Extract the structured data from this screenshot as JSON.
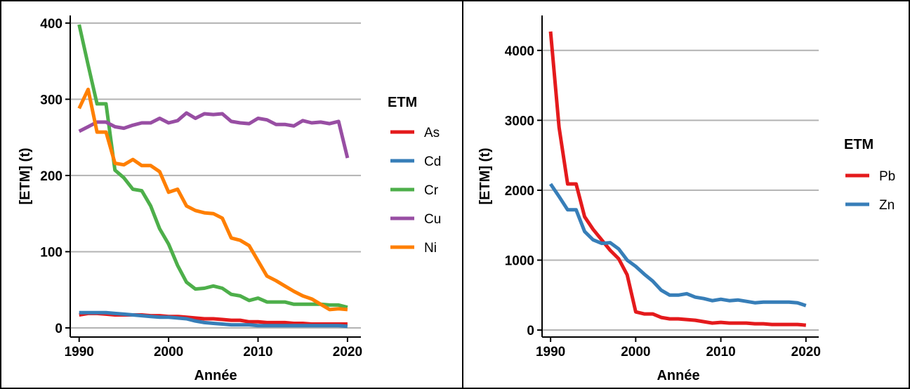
{
  "chart_data": [
    {
      "type": "line",
      "title": "",
      "xlabel": "Année",
      "ylabel": "[ETM] (t)",
      "xlim": [
        1989,
        2021.5
      ],
      "ylim": [
        -12,
        410
      ],
      "xticks": [
        "1990",
        "2000",
        "2010",
        "2020"
      ],
      "yticks": [
        "0",
        "100",
        "200",
        "300",
        "400"
      ],
      "grid": true,
      "legend_title": "ETM",
      "legend_position": "right",
      "x": [
        1990,
        1991,
        1992,
        1993,
        1994,
        1995,
        1996,
        1997,
        1998,
        1999,
        2000,
        2001,
        2002,
        2003,
        2004,
        2005,
        2006,
        2007,
        2008,
        2009,
        2010,
        2011,
        2012,
        2013,
        2014,
        2015,
        2016,
        2017,
        2018,
        2019,
        2020
      ],
      "series": [
        {
          "name": "As",
          "color": "#e41a1c",
          "values": [
            17,
            19,
            19,
            18,
            17,
            17,
            17,
            17,
            16,
            16,
            15,
            15,
            14,
            13,
            12,
            12,
            11,
            10,
            10,
            8,
            8,
            7,
            7,
            7,
            6,
            6,
            5,
            5,
            5,
            5,
            5
          ]
        },
        {
          "name": "Cd",
          "color": "#377eb8",
          "values": [
            20,
            20,
            20,
            20,
            19,
            18,
            17,
            16,
            15,
            14,
            14,
            13,
            12,
            9,
            7,
            6,
            5,
            4,
            4,
            4,
            3,
            3,
            3,
            3,
            3,
            3,
            3,
            3,
            3,
            3,
            2
          ]
        },
        {
          "name": "Cr",
          "color": "#4daf4a",
          "values": [
            398,
            345,
            294,
            294,
            207,
            197,
            182,
            180,
            160,
            130,
            110,
            82,
            60,
            51,
            52,
            55,
            52,
            44,
            42,
            36,
            39,
            34,
            34,
            34,
            31,
            31,
            31,
            31,
            30,
            30,
            27
          ]
        },
        {
          "name": "Cu",
          "color": "#984ea3",
          "values": [
            258,
            264,
            270,
            270,
            264,
            262,
            266,
            269,
            269,
            275,
            269,
            272,
            282,
            275,
            281,
            280,
            281,
            271,
            269,
            268,
            275,
            273,
            267,
            267,
            265,
            272,
            269,
            270,
            268,
            271,
            223
          ]
        },
        {
          "name": "Ni",
          "color": "#ff7f00",
          "values": [
            288,
            313,
            257,
            257,
            216,
            214,
            221,
            213,
            213,
            205,
            178,
            182,
            160,
            154,
            151,
            150,
            144,
            118,
            115,
            108,
            88,
            68,
            62,
            55,
            48,
            42,
            38,
            31,
            24,
            25,
            24
          ]
        }
      ]
    },
    {
      "type": "line",
      "title": "",
      "xlabel": "Année",
      "ylabel": "[ETM] (t)",
      "xlim": [
        1989,
        2021.5
      ],
      "ylim": [
        -100,
        4500
      ],
      "xticks": [
        "1990",
        "2000",
        "2010",
        "2020"
      ],
      "yticks": [
        "0",
        "1000",
        "2000",
        "3000",
        "4000"
      ],
      "grid": true,
      "legend_title": "ETM",
      "legend_position": "right",
      "x": [
        1990,
        1991,
        1992,
        1993,
        1994,
        1995,
        1996,
        1997,
        1998,
        1999,
        2000,
        2001,
        2002,
        2003,
        2004,
        2005,
        2006,
        2007,
        2008,
        2009,
        2010,
        2011,
        2012,
        2013,
        2014,
        2015,
        2016,
        2017,
        2018,
        2019,
        2020
      ],
      "series": [
        {
          "name": "Pb",
          "color": "#e41a1c",
          "values": [
            4270,
            2900,
            2090,
            2090,
            1620,
            1440,
            1290,
            1140,
            1020,
            790,
            260,
            230,
            230,
            180,
            160,
            160,
            150,
            140,
            120,
            100,
            110,
            100,
            100,
            100,
            90,
            90,
            80,
            80,
            80,
            80,
            70
          ]
        },
        {
          "name": "Zn",
          "color": "#377eb8",
          "values": [
            2090,
            1910,
            1720,
            1720,
            1410,
            1290,
            1240,
            1250,
            1160,
            1000,
            910,
            800,
            700,
            570,
            500,
            500,
            520,
            470,
            450,
            420,
            440,
            420,
            430,
            410,
            390,
            400,
            400,
            400,
            400,
            390,
            350
          ]
        }
      ]
    }
  ]
}
